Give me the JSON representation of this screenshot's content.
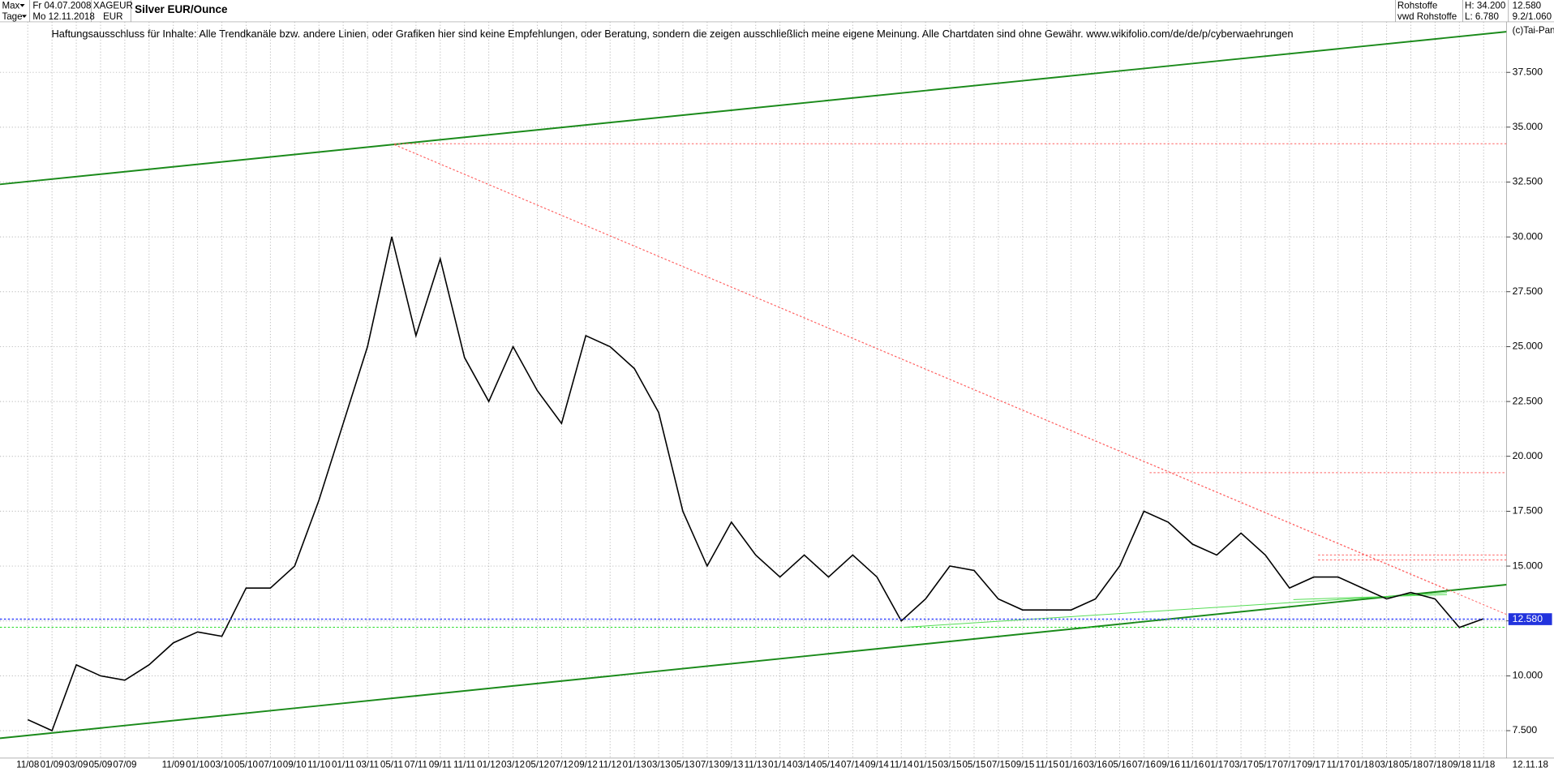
{
  "header": {
    "range": "Max",
    "period": "Tage",
    "from": "Fr 04.07.2008",
    "to": "Mo 12.11.2018",
    "symbol": "XAGEUR",
    "currency": "EUR",
    "group": "Rohstoffe",
    "source": "vwd Rohstoffe",
    "high": "H: 34.200",
    "low": "L: 6.780",
    "last": "12.580",
    "scale": "9.2/1.060"
  },
  "chart_data": {
    "type": "line",
    "title": "Silver EUR/Ounce",
    "annotation": "Haftungsausschluss für Inhalte: Alle Trendkanäle bzw. andere Linien, oder Grafiken hier sind keine Empfehlungen, oder Beratung, sondern die zeigen ausschließlich meine eigene Meinung. Alle Chartdaten sind ohne Gewähr.  www.wikifolio.com/de/de/p/cyberwaehrungen",
    "copyright": "(c)Tai-Pan",
    "date_label": "12.11.18",
    "categories": [
      "11/08",
      "01/09",
      "03/09",
      "05/09",
      "07/09",
      null,
      "11/09",
      "01/10",
      "03/10",
      "05/10",
      "07/10",
      "09/10",
      "11/10",
      "01/11",
      "03/11",
      "05/11",
      "07/11",
      "09/11",
      "11/11",
      "01/12",
      "03/12",
      "05/12",
      "07/12",
      "09/12",
      "11/12",
      "01/13",
      "03/13",
      "05/13",
      "07/13",
      "09/13",
      "11/13",
      "01/14",
      "03/14",
      "05/14",
      "07/14",
      "09/14",
      "11/14",
      "01/15",
      "03/15",
      "05/15",
      "07/15",
      "09/15",
      "11/15",
      "01/16",
      "03/16",
      "05/16",
      "07/16",
      "09/16",
      "11/16",
      "01/17",
      "03/17",
      "05/17",
      "07/17",
      "09/17",
      "11/17",
      "01/18",
      "03/18",
      "05/18",
      "07/18",
      "09/18",
      "11/18"
    ],
    "values": [
      8.0,
      7.5,
      10.5,
      10.0,
      9.8,
      10.5,
      11.5,
      12.0,
      11.8,
      14.0,
      14.0,
      15.0,
      18.0,
      21.5,
      25.0,
      30.0,
      25.5,
      29.0,
      24.5,
      22.5,
      25.0,
      23.0,
      21.5,
      25.5,
      25.0,
      24.0,
      22.0,
      17.5,
      15.0,
      17.0,
      15.5,
      14.5,
      15.5,
      14.5,
      15.5,
      14.5,
      12.5,
      13.5,
      15.0,
      14.8,
      13.5,
      13.0,
      13.0,
      13.0,
      13.5,
      15.0,
      17.5,
      17.0,
      16.0,
      15.5,
      16.5,
      15.5,
      14.0,
      14.5,
      14.5,
      14.0,
      13.5,
      13.8,
      13.5,
      12.2,
      12.6
    ],
    "color": "#000000",
    "last_price": {
      "value": 12.58,
      "label": "12.580"
    },
    "ylim": [
      6.25,
      39.8
    ],
    "yticks": [
      {
        "value": 7.5,
        "label": "7.500"
      },
      {
        "value": 10,
        "label": "10.000"
      },
      {
        "value": 12.5,
        "label": "12.500"
      },
      {
        "value": 15,
        "label": "15.000"
      },
      {
        "value": 17.5,
        "label": "17.500"
      },
      {
        "value": 20,
        "label": "20.000"
      },
      {
        "value": 22.5,
        "label": "22.500"
      },
      {
        "value": 25,
        "label": "25.000"
      },
      {
        "value": 27.5,
        "label": "27.500"
      },
      {
        "value": 30,
        "label": "30.000"
      },
      {
        "value": 32.5,
        "label": "32.500"
      },
      {
        "value": 35,
        "label": "35.000"
      },
      {
        "value": 37.5,
        "label": "37.500"
      }
    ],
    "grid": true
  }
}
